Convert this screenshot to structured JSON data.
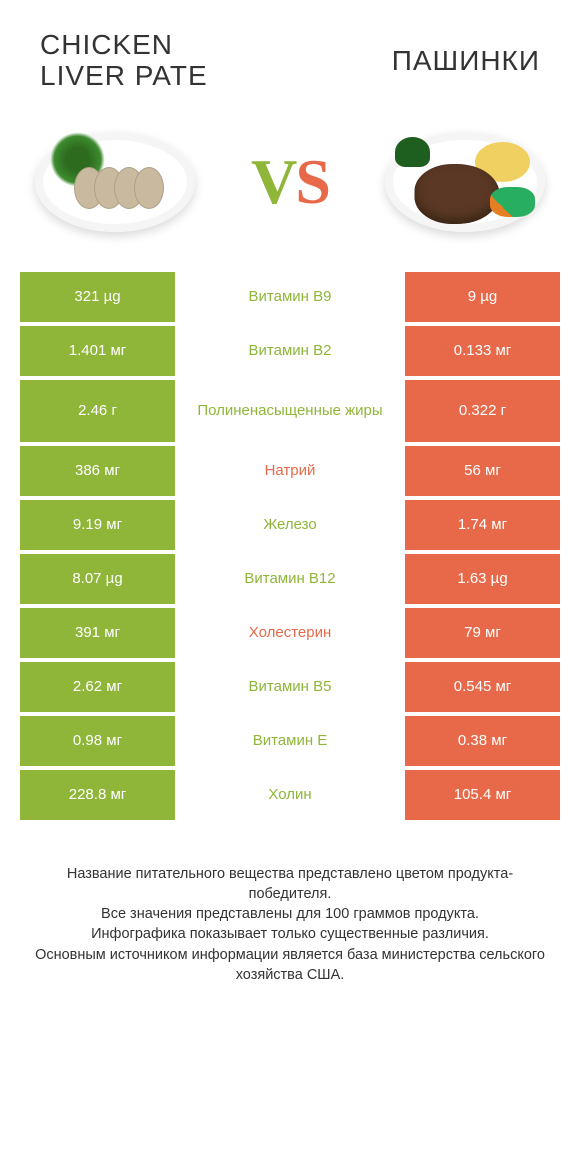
{
  "colors": {
    "green": "#8fb639",
    "red": "#e8694a",
    "text": "#333333",
    "white": "#ffffff"
  },
  "header": {
    "left_title": "CHICKEN\nLIVER PATE",
    "right_title": "ПАШИНКИ",
    "vs_v": "V",
    "vs_s": "S"
  },
  "rows": [
    {
      "left": "321 µg",
      "mid": "Витамин B9",
      "right": "9 µg",
      "winner": "left",
      "tall": false
    },
    {
      "left": "1.401 мг",
      "mid": "Витамин B2",
      "right": "0.133 мг",
      "winner": "left",
      "tall": false
    },
    {
      "left": "2.46 г",
      "mid": "Полиненасыщенные жиры",
      "right": "0.322 г",
      "winner": "left",
      "tall": true
    },
    {
      "left": "386 мг",
      "mid": "Натрий",
      "right": "56 мг",
      "winner": "right",
      "tall": false
    },
    {
      "left": "9.19 мг",
      "mid": "Железо",
      "right": "1.74 мг",
      "winner": "left",
      "tall": false
    },
    {
      "left": "8.07 µg",
      "mid": "Витамин B12",
      "right": "1.63 µg",
      "winner": "left",
      "tall": false
    },
    {
      "left": "391 мг",
      "mid": "Холестерин",
      "right": "79 мг",
      "winner": "right",
      "tall": false
    },
    {
      "left": "2.62 мг",
      "mid": "Витамин B5",
      "right": "0.545 мг",
      "winner": "left",
      "tall": false
    },
    {
      "left": "0.98 мг",
      "mid": "Витамин E",
      "right": "0.38 мг",
      "winner": "left",
      "tall": false
    },
    {
      "left": "228.8 мг",
      "mid": "Холин",
      "right": "105.4 мг",
      "winner": "left",
      "tall": false
    }
  ],
  "footer": {
    "line1": "Название питательного вещества представлено цветом продукта-победителя.",
    "line2": "Все значения представлены для 100 граммов продукта.",
    "line3": "Инфографика показывает только существенные различия.",
    "line4": "Основным источником информации является база министерства сельского хозяйства США."
  }
}
